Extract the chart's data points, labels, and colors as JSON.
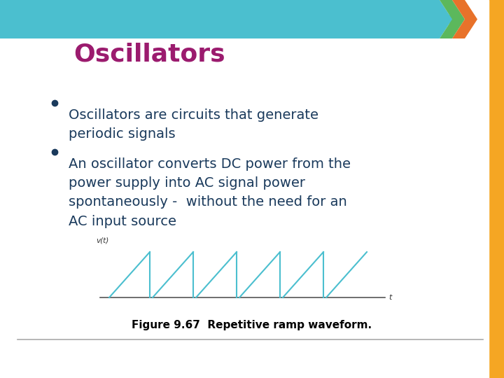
{
  "title": "Oscillators",
  "title_color": "#9B1B6E",
  "title_fontsize": 26,
  "bullet1": "Oscillators are circuits that generate\nperiodic signals",
  "bullet2": "An oscillator converts DC power from the\npower supply into AC signal power\nspontaneously -  without the need for an\nAC input source",
  "bullet_color": "#1a3a5c",
  "bullet_fontsize": 14,
  "figure_caption": "Figure 9.67  Repetitive ramp waveform.",
  "caption_fontsize": 11,
  "bg_color": "#ffffff",
  "header_arrow_blue": "#4BBFCF",
  "header_arrow_green": "#5CB85C",
  "header_arrow_orange": "#E8722A",
  "right_bar_color": "#F5A623",
  "waveform_color": "#4BBFCF",
  "bottom_line_color": "#aaaaaa",
  "slide_bg": "#e8e8e8"
}
